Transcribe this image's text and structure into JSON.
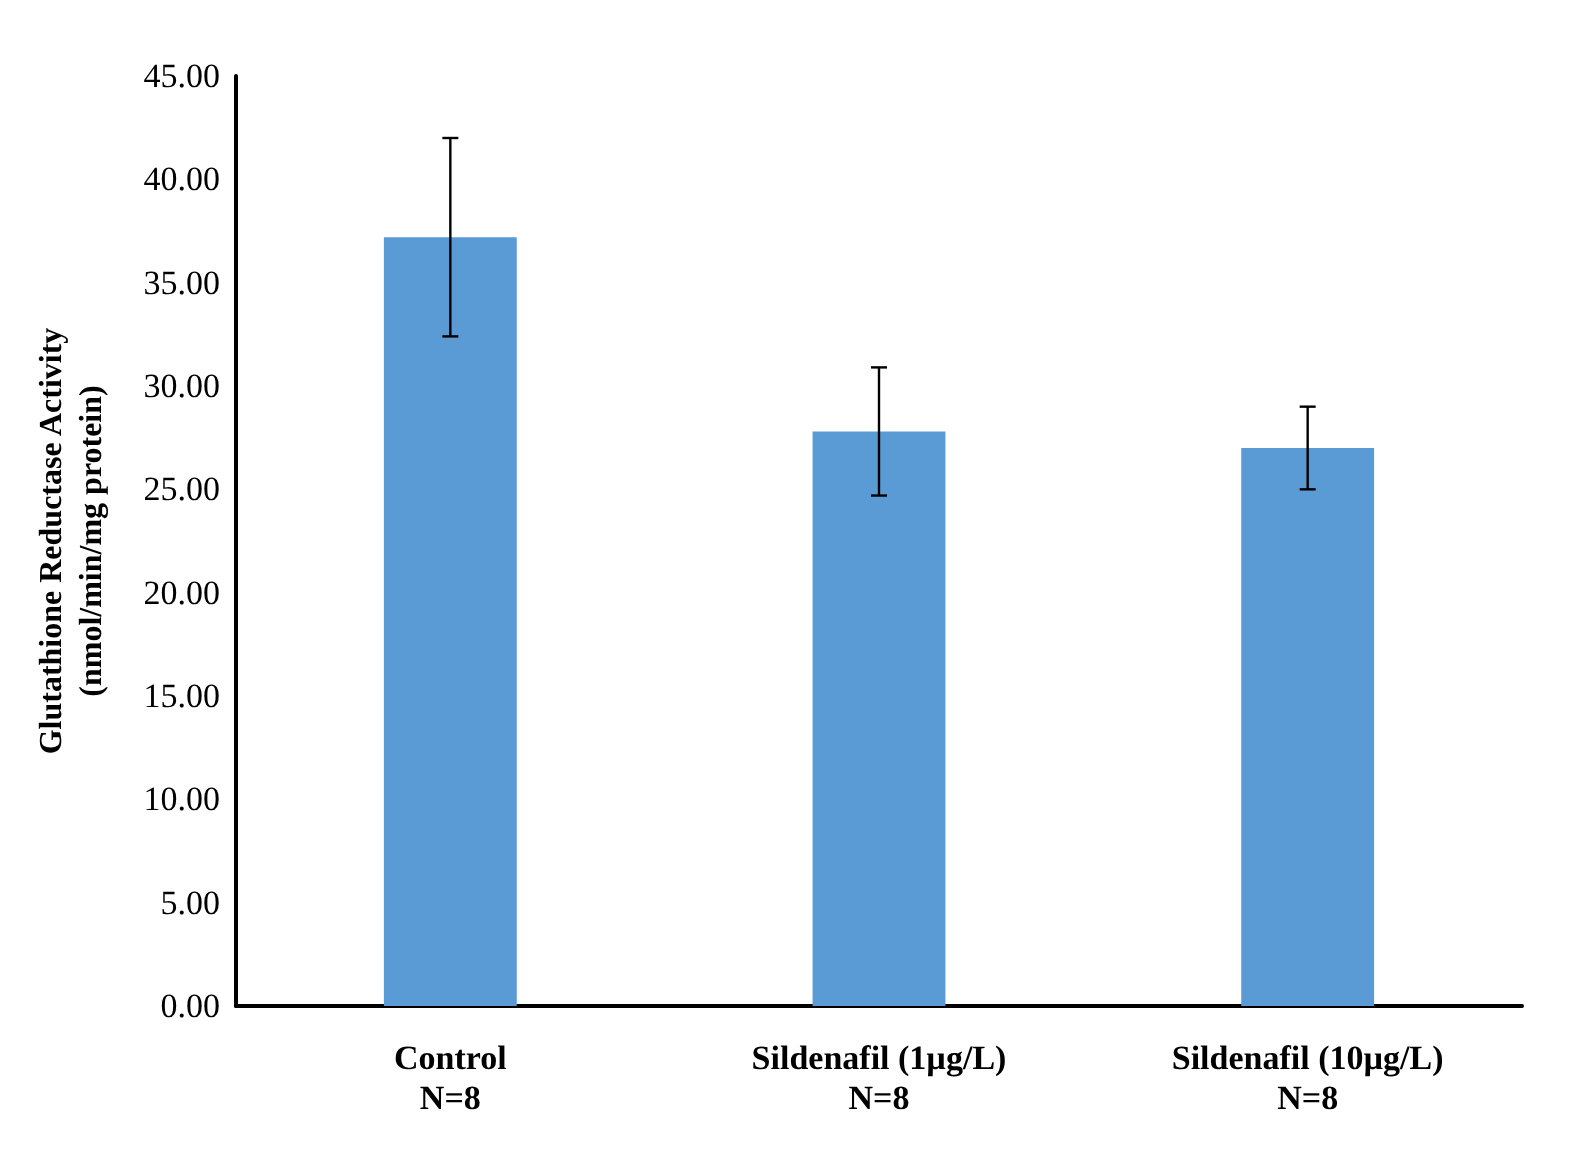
{
  "chart_data": {
    "type": "bar",
    "ylabel": "Glutathione Reductase Activity\n(nmol/min/mg protein)",
    "categories": [
      "Control\nN=8",
      "Sildenafil (1µg/L)\nN=8",
      "Sildenafil (10µg/L)\nN=8"
    ],
    "values": [
      37.2,
      27.8,
      27.0
    ],
    "errors": [
      4.8,
      3.1,
      2.0
    ],
    "color": "#5b9bd5",
    "ylim": [
      0,
      45
    ],
    "yticks": [
      {
        "value": 0,
        "label": "0.00"
      },
      {
        "value": 5,
        "label": "5.00"
      },
      {
        "value": 10,
        "label": "10.00"
      },
      {
        "value": 15,
        "label": "15.00"
      },
      {
        "value": 20,
        "label": "20.00"
      },
      {
        "value": 25,
        "label": "25.00"
      },
      {
        "value": 30,
        "label": "30.00"
      },
      {
        "value": 35,
        "label": "35.00"
      },
      {
        "value": 40,
        "label": "40.00"
      },
      {
        "value": 45,
        "label": "45.00"
      }
    ],
    "grid": false
  }
}
